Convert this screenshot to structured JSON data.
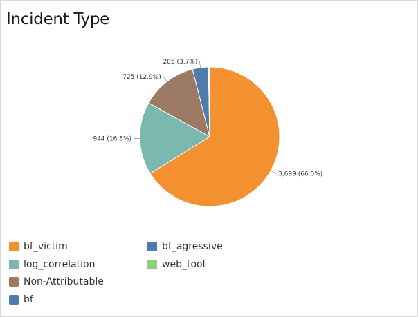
{
  "title": "Incident Type",
  "chart_data": {
    "type": "pie",
    "title": "Incident Type",
    "slices": [
      {
        "name": "bf_victim",
        "value": 3699,
        "label": "3,699 (66.0%)",
        "color": "#f39030"
      },
      {
        "name": "log_correlation",
        "value": 944,
        "label": "944 (16.8%)",
        "color": "#7ab8b0"
      },
      {
        "name": "Non-Attributable",
        "value": 725,
        "label": "725 (12.9%)",
        "color": "#9c7a64"
      },
      {
        "name": "bf",
        "value": 205,
        "label": "205 (3.7%)",
        "color": "#4e7cad"
      },
      {
        "name": "web_tool",
        "value": 12,
        "label": "",
        "color": "#8fd080"
      },
      {
        "name": "bf_agressive",
        "value": 4,
        "label": "",
        "color": "#4e7cad"
      }
    ],
    "legend": [
      {
        "name": "bf_victim",
        "color": "#f39030"
      },
      {
        "name": "log_correlation",
        "color": "#7ab8b0"
      },
      {
        "name": "Non-Attributable",
        "color": "#9c7a64"
      },
      {
        "name": "bf",
        "color": "#4e7cad"
      },
      {
        "name": "bf_agressive",
        "color": "#4e7cad"
      },
      {
        "name": "web_tool",
        "color": "#8fd080"
      }
    ],
    "legend_position": "bottom-left"
  }
}
